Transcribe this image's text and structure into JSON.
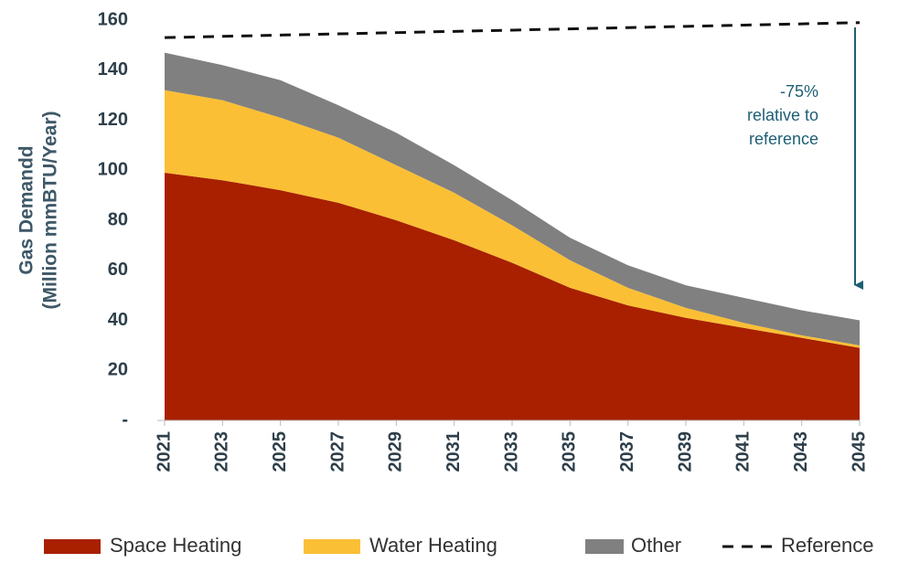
{
  "chart_data": {
    "type": "stacked_area",
    "y_label": [
      "Gas Demandd",
      "(Million mmBTU/Year)"
    ],
    "annotation": [
      "-75%",
      "relative to",
      "reference"
    ],
    "x": [
      2021,
      2023,
      2025,
      2027,
      2029,
      2031,
      2033,
      2035,
      2037,
      2039,
      2041,
      2043,
      2045
    ],
    "xlim": [
      2021,
      2045
    ],
    "xticks": [
      2021,
      2023,
      2025,
      2027,
      2029,
      2031,
      2033,
      2035,
      2037,
      2039,
      2041,
      2043,
      2045
    ],
    "ylim": [
      0,
      160
    ],
    "yticks": [
      {
        "value": 0,
        "label": "-"
      },
      20,
      40,
      60,
      80,
      100,
      120,
      140,
      160
    ],
    "series": [
      {
        "name": "Space Heating",
        "color": "#a82000",
        "values": [
          99,
          96,
          92,
          87,
          80,
          72,
          63,
          53,
          46,
          41,
          37,
          33,
          29
        ]
      },
      {
        "name": "Water Heating",
        "color": "#fbbf35",
        "values": [
          33,
          32,
          29,
          26,
          22,
          19,
          15,
          11,
          7,
          4,
          2,
          1,
          1
        ]
      },
      {
        "name": "Other",
        "color": "#808080",
        "values": [
          15,
          14,
          15,
          13,
          13,
          11,
          10,
          9,
          9,
          9,
          10,
          10,
          10
        ]
      }
    ],
    "reference": {
      "name": "Reference",
      "color": "#111111",
      "values": [
        153,
        153.5,
        154,
        154.5,
        155,
        155.5,
        156,
        156.5,
        157,
        157.5,
        158,
        158.5,
        159
      ]
    }
  }
}
